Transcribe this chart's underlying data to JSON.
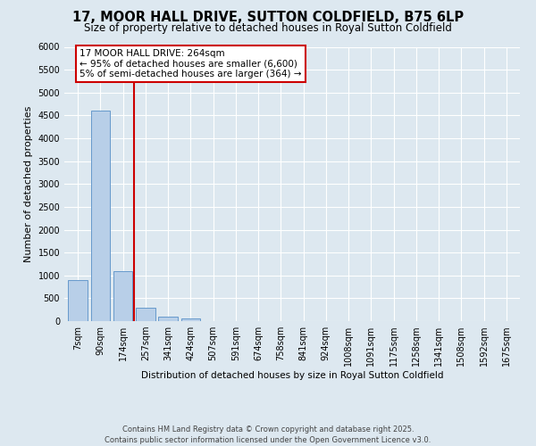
{
  "title1": "17, MOOR HALL DRIVE, SUTTON COLDFIELD, B75 6LP",
  "title2": "Size of property relative to detached houses in Royal Sutton Coldfield",
  "xlabel": "Distribution of detached houses by size in Royal Sutton Coldfield",
  "ylabel": "Number of detached properties",
  "categories": [
    "7sqm",
    "90sqm",
    "174sqm",
    "257sqm",
    "341sqm",
    "424sqm",
    "507sqm",
    "591sqm",
    "674sqm",
    "758sqm",
    "841sqm",
    "924sqm",
    "1008sqm",
    "1091sqm",
    "1175sqm",
    "1258sqm",
    "1341sqm",
    "1508sqm",
    "1592sqm",
    "1675sqm"
  ],
  "values": [
    900,
    4600,
    1100,
    300,
    100,
    60,
    0,
    0,
    0,
    0,
    0,
    0,
    0,
    0,
    0,
    0,
    0,
    0,
    0,
    0
  ],
  "bar_color": "#b8cfe8",
  "bar_edge_color": "#6699cc",
  "vline_color": "#cc0000",
  "annotation_text": "17 MOOR HALL DRIVE: 264sqm\n← 95% of detached houses are smaller (6,600)\n5% of semi-detached houses are larger (364) →",
  "annotation_box_color": "#cc0000",
  "ylim": [
    0,
    6000
  ],
  "yticks": [
    0,
    500,
    1000,
    1500,
    2000,
    2500,
    3000,
    3500,
    4000,
    4500,
    5000,
    5500,
    6000
  ],
  "bg_color": "#dde8f0",
  "plot_bg_color": "#dde8f0",
  "footer": "Contains HM Land Registry data © Crown copyright and database right 2025.\nContains public sector information licensed under the Open Government Licence v3.0.",
  "title1_fontsize": 10.5,
  "title2_fontsize": 8.5,
  "xlabel_fontsize": 7.5,
  "ylabel_fontsize": 8,
  "tick_fontsize": 7,
  "annot_fontsize": 7.5
}
